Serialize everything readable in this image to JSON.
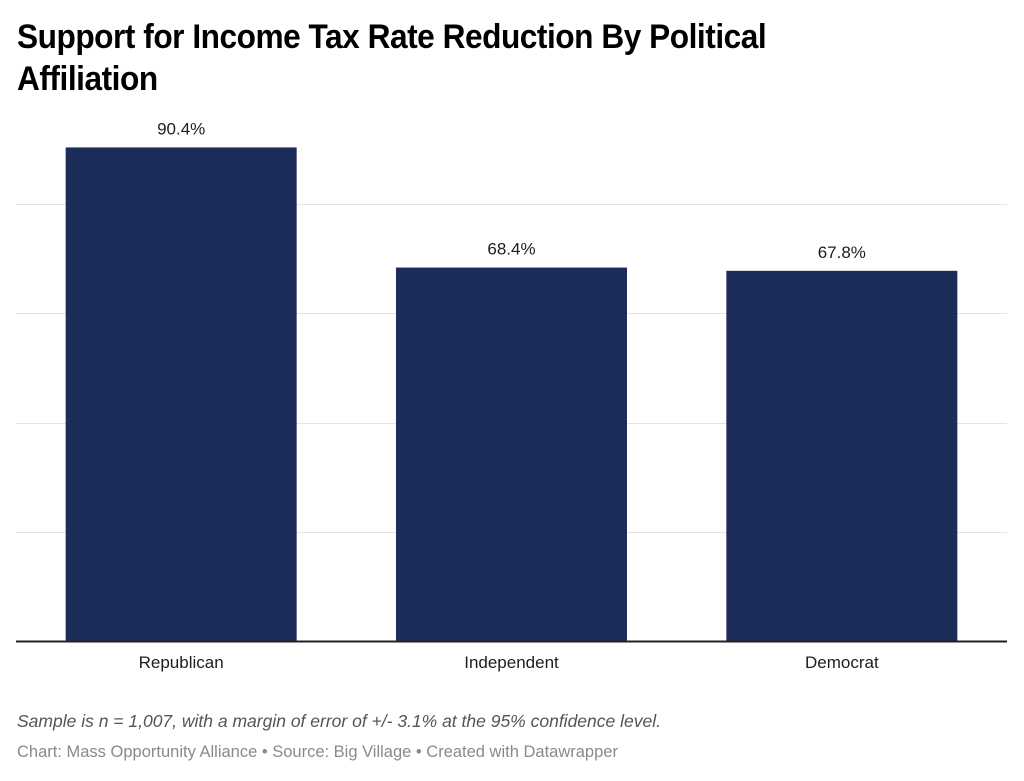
{
  "chart_data": {
    "type": "bar",
    "title": "Support for Income Tax Rate Reduction By Political Affiliation",
    "categories": [
      "Republican",
      "Independent",
      "Democrat"
    ],
    "values": [
      90.4,
      68.4,
      67.8
    ],
    "value_labels": [
      "90.4%",
      "68.4%",
      "67.8%"
    ],
    "xlabel": "",
    "ylabel": "",
    "ylim": [
      0,
      100
    ],
    "gridlines": [
      20,
      40,
      60,
      80
    ],
    "grid": true,
    "y_tick_labels_visible": false,
    "legend": "none",
    "bar_color": "#1c2d5a"
  },
  "notes": "Sample is n = 1,007, with a margin of error of +/- 3.1% at the 95% confidence level.",
  "credits": "Chart: Mass Opportunity Alliance • Source: Big Village • Created with Datawrapper"
}
